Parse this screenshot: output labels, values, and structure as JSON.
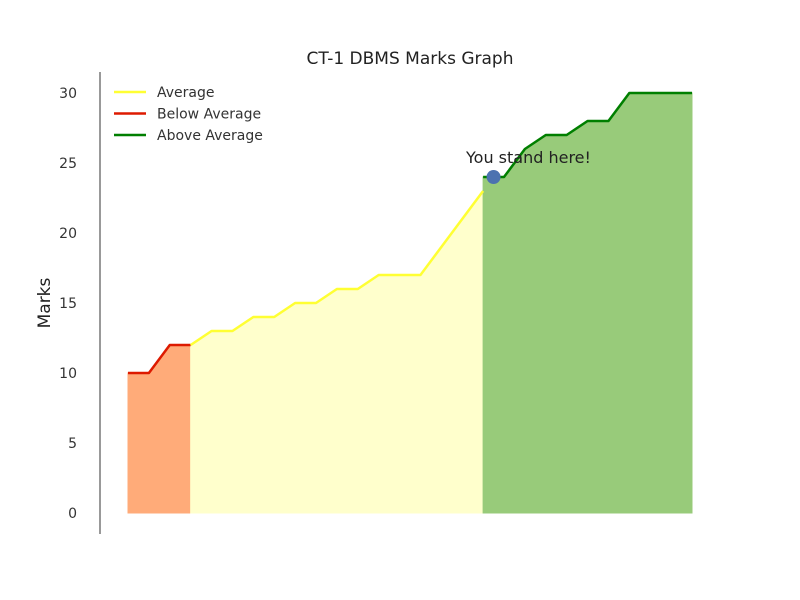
{
  "chart_data": {
    "type": "area",
    "title": "CT-1 DBMS Marks Graph",
    "xlabel": "",
    "ylabel": "Marks",
    "ylim": [
      0,
      31
    ],
    "yticks": [
      0,
      5,
      10,
      15,
      20,
      25,
      30
    ],
    "x_tick_labels": "none",
    "grid": false,
    "legend_position": "top-left",
    "series": [
      {
        "name": "Below Average",
        "color": "#dd1a00",
        "fill_color": "#ffab79",
        "x": [
          0,
          1,
          2,
          3
        ],
        "values": [
          10,
          10,
          12,
          12
        ]
      },
      {
        "name": "Average",
        "color": "#ffff33",
        "fill_color": "#ffffcc",
        "x": [
          3,
          4,
          5,
          6,
          7,
          8,
          9,
          10,
          11,
          12,
          13,
          14,
          15,
          16,
          17
        ],
        "values": [
          12,
          13,
          13,
          14,
          14,
          15,
          15,
          16,
          16,
          17,
          17,
          17,
          19,
          21,
          23
        ]
      },
      {
        "name": "Above Average",
        "color": "#007f00",
        "fill_color": "#98cb7a",
        "x": [
          17,
          18,
          19,
          20,
          21,
          22,
          23,
          24,
          25,
          26,
          27
        ],
        "values": [
          24,
          24,
          26,
          27,
          27,
          28,
          28,
          30,
          30,
          30,
          30
        ]
      }
    ],
    "legend": [
      {
        "name": "Average",
        "color": "#ffff33"
      },
      {
        "name": "Below Average",
        "color": "#dd1a00"
      },
      {
        "name": "Above Average",
        "color": "#007f00"
      }
    ],
    "annotation": {
      "text": "You stand here!",
      "point": {
        "x": 17.5,
        "y": 24
      },
      "marker_color": "#4c72b0"
    }
  }
}
